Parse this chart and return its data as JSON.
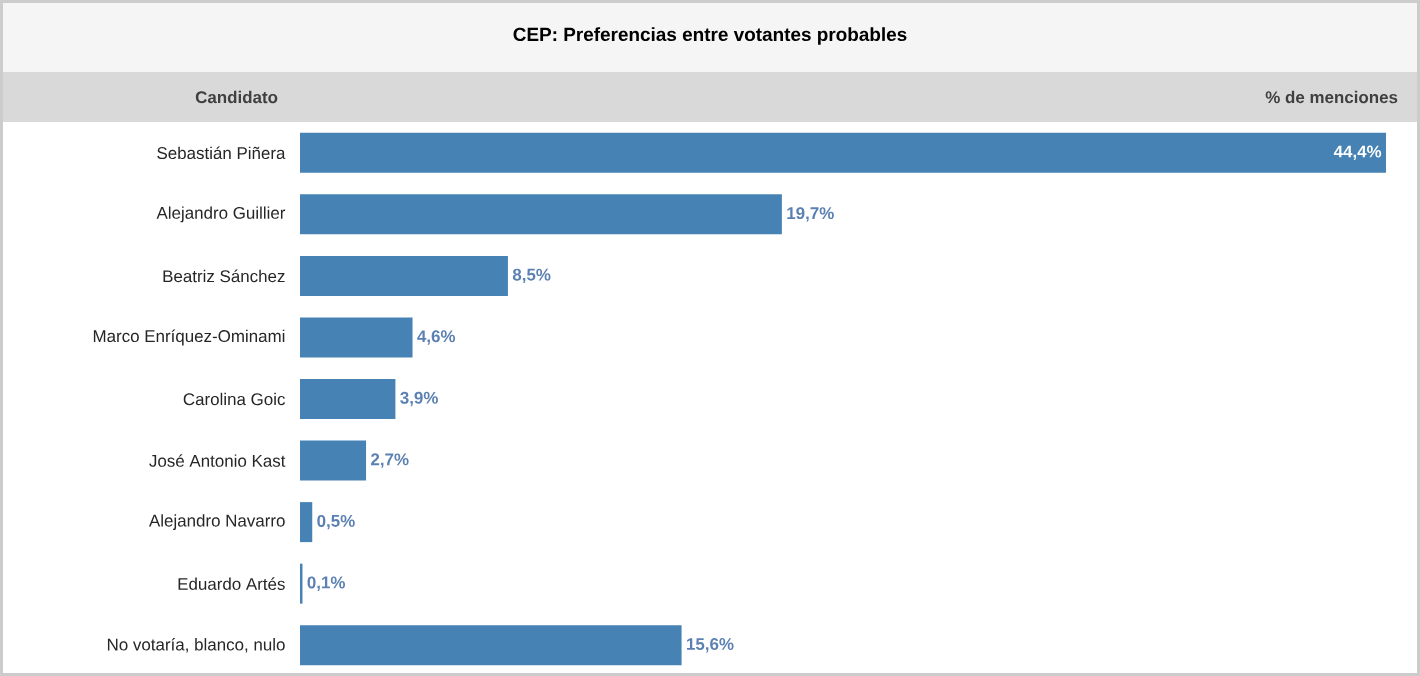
{
  "chart_data": {
    "type": "bar",
    "orientation": "horizontal",
    "title": "CEP: Preferencias entre votantes probables",
    "xlabel": "% de menciones",
    "ylabel": "Candidato",
    "categories": [
      "Sebastián Piñera",
      "Alejandro Guillier",
      "Beatriz Sánchez",
      "Marco Enríquez-Ominami",
      "Carolina Goic",
      "José Antonio Kast",
      "Alejandro Navarro",
      "Eduardo Artés",
      "No votaría, blanco, nulo"
    ],
    "values": [
      44.4,
      19.7,
      8.5,
      4.6,
      3.9,
      2.7,
      0.5,
      0.1,
      15.6
    ],
    "value_labels": [
      "44,4%",
      "19,7%",
      "8,5%",
      "4,6%",
      "3,9%",
      "2,7%",
      "0,5%",
      "0,1%",
      "15,6%"
    ],
    "color": "#4682b4"
  }
}
